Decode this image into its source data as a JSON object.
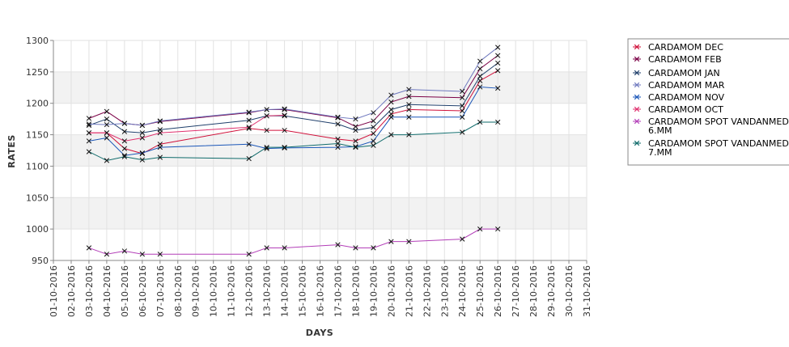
{
  "chart_data": {
    "type": "line",
    "xlabel": "DAYS",
    "ylabel": "RATES",
    "ylim": [
      950,
      1300
    ],
    "yticks": [
      950,
      1000,
      1050,
      1100,
      1150,
      1200,
      1250,
      1300
    ],
    "grid": true,
    "alternating_bands": true,
    "legend_position": "right",
    "x_tick_labels": [
      "01-10-2016",
      "02-10-2016",
      "03-10-2016",
      "04-10-2016",
      "05-10-2016",
      "06-10-2016",
      "07-10-2016",
      "08-10-2016",
      "09-10-2016",
      "10-10-2016",
      "11-10-2016",
      "12-10-2016",
      "13-10-2016",
      "14-10-2016",
      "15-10-2016",
      "16-10-2016",
      "17-10-2016",
      "18-10-2016",
      "19-10-2016",
      "20-10-2016",
      "21-10-2016",
      "22-10-2016",
      "23-10-2016",
      "24-10-2016",
      "25-10-2016",
      "26-10-2016",
      "27-10-2016",
      "28-10-2016",
      "29-10-2016",
      "30-10-2016",
      "31-10-2016"
    ],
    "series": [
      {
        "name": "CARDAMOM DEC",
        "color": "#d0103a",
        "points": [
          {
            "x": "03-10-2016",
            "y": 1153
          },
          {
            "x": "04-10-2016",
            "y": 1153
          },
          {
            "x": "05-10-2016",
            "y": 1128
          },
          {
            "x": "06-10-2016",
            "y": 1120
          },
          {
            "x": "07-10-2016",
            "y": 1135
          },
          {
            "x": "12-10-2016",
            "y": 1160
          },
          {
            "x": "13-10-2016",
            "y": 1157
          },
          {
            "x": "14-10-2016",
            "y": 1157
          },
          {
            "x": "17-10-2016",
            "y": 1143
          },
          {
            "x": "18-10-2016",
            "y": 1140
          },
          {
            "x": "19-10-2016",
            "y": 1152
          },
          {
            "x": "20-10-2016",
            "y": 1183
          },
          {
            "x": "21-10-2016",
            "y": 1190
          },
          {
            "x": "24-10-2016",
            "y": 1188
          },
          {
            "x": "25-10-2016",
            "y": 1236
          },
          {
            "x": "26-10-2016",
            "y": 1252
          }
        ]
      },
      {
        "name": "CARDAMOM FEB",
        "color": "#7b0046",
        "points": [
          {
            "x": "03-10-2016",
            "y": 1176
          },
          {
            "x": "04-10-2016",
            "y": 1187
          },
          {
            "x": "05-10-2016",
            "y": 1168
          },
          {
            "x": "06-10-2016",
            "y": 1165
          },
          {
            "x": "07-10-2016",
            "y": 1171
          },
          {
            "x": "12-10-2016",
            "y": 1185
          },
          {
            "x": "13-10-2016",
            "y": 1190
          },
          {
            "x": "14-10-2016",
            "y": 1190
          },
          {
            "x": "17-10-2016",
            "y": 1177
          },
          {
            "x": "18-10-2016",
            "y": 1163
          },
          {
            "x": "19-10-2016",
            "y": 1172
          },
          {
            "x": "20-10-2016",
            "y": 1202
          },
          {
            "x": "21-10-2016",
            "y": 1211
          },
          {
            "x": "24-10-2016",
            "y": 1209
          },
          {
            "x": "25-10-2016",
            "y": 1255
          },
          {
            "x": "26-10-2016",
            "y": 1276
          }
        ]
      },
      {
        "name": "CARDAMOM JAN",
        "color": "#1f3f6b",
        "points": [
          {
            "x": "03-10-2016",
            "y": 1165
          },
          {
            "x": "04-10-2016",
            "y": 1175
          },
          {
            "x": "05-10-2016",
            "y": 1155
          },
          {
            "x": "06-10-2016",
            "y": 1153
          },
          {
            "x": "07-10-2016",
            "y": 1158
          },
          {
            "x": "12-10-2016",
            "y": 1173
          },
          {
            "x": "13-10-2016",
            "y": 1180
          },
          {
            "x": "14-10-2016",
            "y": 1180
          },
          {
            "x": "17-10-2016",
            "y": 1167
          },
          {
            "x": "18-10-2016",
            "y": 1157
          },
          {
            "x": "19-10-2016",
            "y": 1162
          },
          {
            "x": "20-10-2016",
            "y": 1190
          },
          {
            "x": "21-10-2016",
            "y": 1198
          },
          {
            "x": "24-10-2016",
            "y": 1196
          },
          {
            "x": "25-10-2016",
            "y": 1243
          },
          {
            "x": "26-10-2016",
            "y": 1264
          }
        ]
      },
      {
        "name": "CARDAMOM MAR",
        "color": "#6f79bf",
        "points": [
          {
            "x": "03-10-2016",
            "y": 1167
          },
          {
            "x": "04-10-2016",
            "y": 1166
          },
          {
            "x": "05-10-2016",
            "y": 1168
          },
          {
            "x": "06-10-2016",
            "y": 1165
          },
          {
            "x": "07-10-2016",
            "y": 1172
          },
          {
            "x": "12-10-2016",
            "y": 1186
          },
          {
            "x": "13-10-2016",
            "y": 1190
          },
          {
            "x": "14-10-2016",
            "y": 1191
          },
          {
            "x": "17-10-2016",
            "y": 1178
          },
          {
            "x": "18-10-2016",
            "y": 1175
          },
          {
            "x": "19-10-2016",
            "y": 1185
          },
          {
            "x": "20-10-2016",
            "y": 1213
          },
          {
            "x": "21-10-2016",
            "y": 1222
          },
          {
            "x": "24-10-2016",
            "y": 1219
          },
          {
            "x": "25-10-2016",
            "y": 1267
          },
          {
            "x": "26-10-2016",
            "y": 1289
          }
        ]
      },
      {
        "name": "CARDAMOM NOV",
        "color": "#1a56b8",
        "points": [
          {
            "x": "03-10-2016",
            "y": 1140
          },
          {
            "x": "04-10-2016",
            "y": 1145
          },
          {
            "x": "05-10-2016",
            "y": 1117
          },
          {
            "x": "06-10-2016",
            "y": 1121
          },
          {
            "x": "07-10-2016",
            "y": 1130
          },
          {
            "x": "12-10-2016",
            "y": 1135
          },
          {
            "x": "13-10-2016",
            "y": 1128
          },
          {
            "x": "14-10-2016",
            "y": 1129
          },
          {
            "x": "17-10-2016",
            "y": 1130
          },
          {
            "x": "18-10-2016",
            "y": 1131
          },
          {
            "x": "19-10-2016",
            "y": 1140
          },
          {
            "x": "20-10-2016",
            "y": 1178
          },
          {
            "x": "21-10-2016",
            "y": 1178
          },
          {
            "x": "24-10-2016",
            "y": 1178
          },
          {
            "x": "25-10-2016",
            "y": 1226
          },
          {
            "x": "26-10-2016",
            "y": 1224
          }
        ]
      },
      {
        "name": "CARDAMOM OCT",
        "color": "#e0306e",
        "points": [
          {
            "x": "03-10-2016",
            "y": 1153
          },
          {
            "x": "04-10-2016",
            "y": 1153
          },
          {
            "x": "05-10-2016",
            "y": 1140
          },
          {
            "x": "06-10-2016",
            "y": 1145
          },
          {
            "x": "07-10-2016",
            "y": 1153
          },
          {
            "x": "12-10-2016",
            "y": 1162
          },
          {
            "x": "13-10-2016",
            "y": 1180
          },
          {
            "x": "14-10-2016",
            "y": 1181
          }
        ]
      },
      {
        "name": "CARDAMOM SPOT VANDANMEDU 6.MM",
        "legend_lines": [
          "CARDAMOM SPOT VANDANMEDU",
          "6.MM"
        ],
        "color": "#b33fb8",
        "points": [
          {
            "x": "03-10-2016",
            "y": 970
          },
          {
            "x": "04-10-2016",
            "y": 960
          },
          {
            "x": "05-10-2016",
            "y": 965
          },
          {
            "x": "06-10-2016",
            "y": 960
          },
          {
            "x": "07-10-2016",
            "y": 960
          },
          {
            "x": "12-10-2016",
            "y": 960
          },
          {
            "x": "13-10-2016",
            "y": 970
          },
          {
            "x": "14-10-2016",
            "y": 970
          },
          {
            "x": "17-10-2016",
            "y": 975
          },
          {
            "x": "18-10-2016",
            "y": 970
          },
          {
            "x": "19-10-2016",
            "y": 970
          },
          {
            "x": "20-10-2016",
            "y": 980
          },
          {
            "x": "21-10-2016",
            "y": 980
          },
          {
            "x": "24-10-2016",
            "y": 984
          },
          {
            "x": "25-10-2016",
            "y": 1000
          },
          {
            "x": "26-10-2016",
            "y": 1000
          }
        ]
      },
      {
        "name": "CARDAMOM SPOT VANDANMEDU 7.MM",
        "legend_lines": [
          "CARDAMOM SPOT VANDANMEDU",
          "7.MM"
        ],
        "color": "#0f6b6b",
        "points": [
          {
            "x": "03-10-2016",
            "y": 1123
          },
          {
            "x": "04-10-2016",
            "y": 1109
          },
          {
            "x": "05-10-2016",
            "y": 1115
          },
          {
            "x": "06-10-2016",
            "y": 1110
          },
          {
            "x": "07-10-2016",
            "y": 1114
          },
          {
            "x": "12-10-2016",
            "y": 1112
          },
          {
            "x": "13-10-2016",
            "y": 1130
          },
          {
            "x": "14-10-2016",
            "y": 1130
          },
          {
            "x": "17-10-2016",
            "y": 1136
          },
          {
            "x": "18-10-2016",
            "y": 1130
          },
          {
            "x": "19-10-2016",
            "y": 1133
          },
          {
            "x": "20-10-2016",
            "y": 1150
          },
          {
            "x": "21-10-2016",
            "y": 1150
          },
          {
            "x": "24-10-2016",
            "y": 1154
          },
          {
            "x": "25-10-2016",
            "y": 1170
          },
          {
            "x": "26-10-2016",
            "y": 1170
          }
        ]
      }
    ]
  }
}
